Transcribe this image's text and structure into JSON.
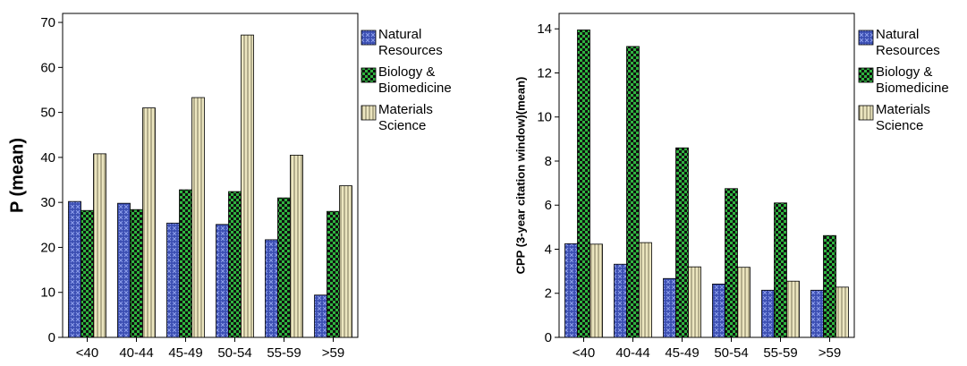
{
  "chart_data": [
    {
      "type": "bar",
      "categories": [
        "<40",
        "40-44",
        "45-49",
        "50-54",
        "55-59",
        ">59"
      ],
      "ylabel": "P (mean)",
      "ylim": [
        0,
        72
      ],
      "yticks": [
        0,
        10,
        20,
        30,
        40,
        50,
        60,
        70
      ],
      "legend_placement": "right",
      "series": [
        {
          "name": "Natural Resources",
          "legend_lines": [
            "Natural",
            "Resources"
          ],
          "color": "#3c4fb3",
          "pattern": "cross-dots",
          "values": [
            30.2,
            29.8,
            25.4,
            25.1,
            21.7,
            9.4
          ]
        },
        {
          "name": "Biology & Biomedicine",
          "legend_lines": [
            "Biology &",
            "Biomedicine"
          ],
          "color": "#1f8a2b",
          "pattern": "checker",
          "values": [
            28.2,
            28.4,
            32.8,
            32.4,
            31.0,
            28.0
          ]
        },
        {
          "name": "Materials Science",
          "legend_lines": [
            "Materials",
            "Science"
          ],
          "color": "#e3dcb0",
          "pattern": "vertical-lines",
          "values": [
            40.8,
            51.0,
            53.3,
            67.2,
            40.5,
            33.7
          ]
        }
      ]
    },
    {
      "type": "bar",
      "categories": [
        "<40",
        "40-44",
        "45-49",
        "50-54",
        "55-59",
        ">59"
      ],
      "ylabel": "CPP (3-year citation window)(mean)",
      "ylim": [
        0,
        14.7
      ],
      "yticks": [
        0,
        2,
        4,
        6,
        8,
        10,
        12,
        14
      ],
      "legend_placement": "right",
      "series": [
        {
          "name": "Natural Resources",
          "legend_lines": [
            "Natural",
            "Resources"
          ],
          "color": "#3c4fb3",
          "pattern": "cross-dots",
          "values": [
            4.25,
            3.32,
            2.67,
            2.42,
            2.14,
            2.14
          ]
        },
        {
          "name": "Biology & Biomedicine",
          "legend_lines": [
            "Biology &",
            "Biomedicine"
          ],
          "color": "#1f8a2b",
          "pattern": "checker",
          "values": [
            13.95,
            13.2,
            8.6,
            6.75,
            6.1,
            4.62
          ]
        },
        {
          "name": "Materials Science",
          "legend_lines": [
            "Materials",
            "Science"
          ],
          "color": "#e3dcb0",
          "pattern": "vertical-lines",
          "values": [
            4.23,
            4.3,
            3.2,
            3.18,
            2.55,
            2.28
          ]
        }
      ]
    }
  ]
}
